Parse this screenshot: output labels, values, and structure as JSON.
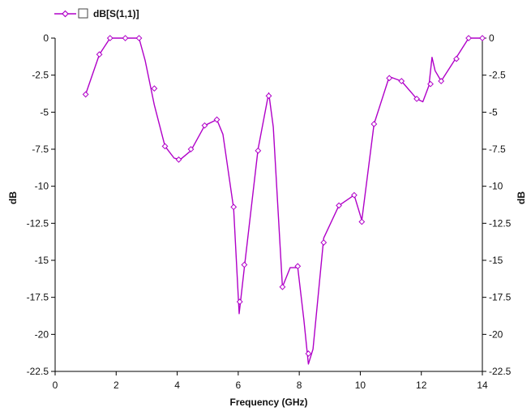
{
  "chart_data": {
    "type": "line",
    "title": "",
    "xlabel": "Frequency (GHz)",
    "ylabel_left": "dB",
    "ylabel_right": "dB",
    "xlim": [
      0,
      14
    ],
    "ylim": [
      -22.5,
      0
    ],
    "x_ticks": [
      0,
      2,
      4,
      6,
      8,
      10,
      12,
      14
    ],
    "x_tick_labels": [
      "0",
      "2",
      "4",
      "6",
      "8",
      "10",
      "12",
      "14"
    ],
    "y_ticks": [
      0,
      -2.5,
      -5,
      -7.5,
      -10,
      -12.5,
      -15,
      -17.5,
      -20,
      -22.5
    ],
    "y_tick_labels": [
      "0",
      "-2.5",
      "-5",
      "-7.5",
      "-10",
      "-12.5",
      "-15",
      "-17.5",
      "-20",
      "-22.5"
    ],
    "grid": false,
    "legend_position": "top-left",
    "series": [
      {
        "name": "dB[S(1,1)]",
        "color": "#b000c8",
        "marker": "diamond",
        "curve_x": [
          1.0,
          1.45,
          1.8,
          2.25,
          2.75,
          2.95,
          3.25,
          3.6,
          3.9,
          4.1,
          4.45,
          4.9,
          5.3,
          5.5,
          5.85,
          6.03,
          6.2,
          6.65,
          7.0,
          7.15,
          7.45,
          7.7,
          7.95,
          8.15,
          8.3,
          8.45,
          8.8,
          9.3,
          9.8,
          10.05,
          10.45,
          10.95,
          11.35,
          11.85,
          12.05,
          12.25,
          12.35,
          12.45,
          12.65,
          13.15,
          13.55,
          14.0
        ],
        "curve_y": [
          -3.8,
          -1.1,
          0,
          0,
          0,
          -1.5,
          -4.5,
          -7.3,
          -8.1,
          -8.2,
          -7.6,
          -5.9,
          -5.5,
          -6.5,
          -11.5,
          -18.6,
          -15.5,
          -7.5,
          -3.7,
          -6.0,
          -16.8,
          -15.5,
          -15.5,
          -19.0,
          -22.0,
          -21.0,
          -13.5,
          -11.3,
          -10.6,
          -12.3,
          -5.8,
          -2.6,
          -2.9,
          -4.1,
          -4.3,
          -3.2,
          -1.3,
          -2.2,
          -2.9,
          -1.3,
          0,
          0
        ],
        "marker_x": [
          1.0,
          1.45,
          1.8,
          2.3,
          2.75,
          3.25,
          3.6,
          4.05,
          4.45,
          4.9,
          5.3,
          5.85,
          6.05,
          6.2,
          6.65,
          7.0,
          7.45,
          7.95,
          8.3,
          8.8,
          9.3,
          9.8,
          10.05,
          10.45,
          10.95,
          11.35,
          11.85,
          12.3,
          12.65,
          13.15,
          13.55,
          14.0
        ],
        "marker_y": [
          -3.8,
          -1.1,
          0,
          0,
          0,
          -3.4,
          -7.3,
          -8.2,
          -7.5,
          -5.9,
          -5.5,
          -11.4,
          -17.8,
          -15.3,
          -7.6,
          -3.9,
          -16.8,
          -15.4,
          -21.3,
          -13.8,
          -11.3,
          -10.6,
          -12.4,
          -5.8,
          -2.7,
          -2.9,
          -4.1,
          -3.1,
          -2.9,
          -1.4,
          0,
          0
        ]
      }
    ]
  }
}
